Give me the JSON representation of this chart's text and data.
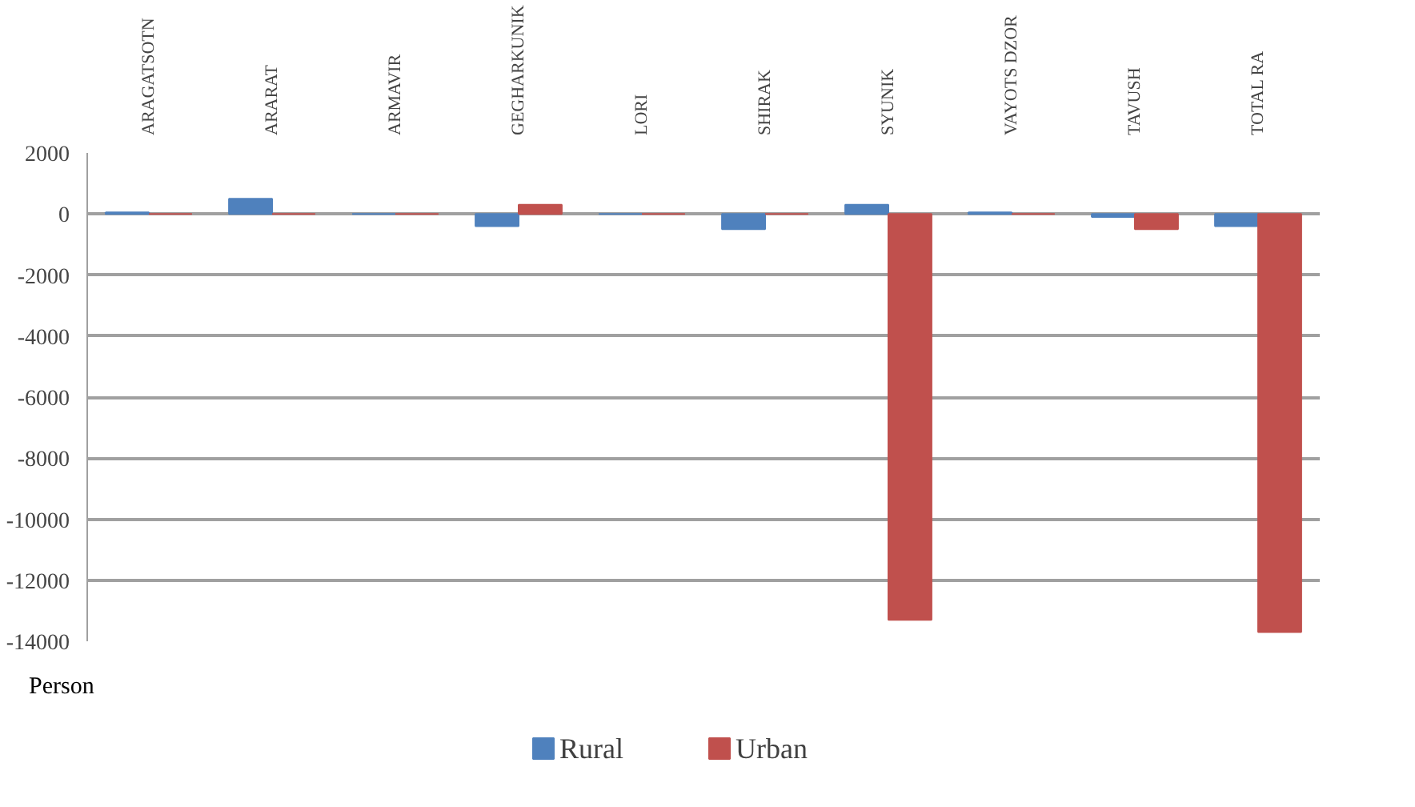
{
  "chart_data": {
    "type": "bar",
    "categories": [
      "ARAGATSOTN",
      "ARARAT",
      "ARMAVIR",
      "GEGHARKUNIK",
      "LORI",
      "SHIRAK",
      "SYUNIK",
      "VAYOTS DZOR",
      "TAVUSH",
      "TOTAL RA"
    ],
    "series": [
      {
        "name": "Rural",
        "color": "#4f81bd",
        "values": [
          50,
          500,
          0,
          -400,
          0,
          -500,
          300,
          50,
          -100,
          -400
        ]
      },
      {
        "name": "Urban",
        "color": "#c0504d",
        "values": [
          0,
          0,
          0,
          300,
          0,
          0,
          -13300,
          0,
          -500,
          -13700
        ]
      }
    ],
    "ylim": [
      -14000,
      2000
    ],
    "yticks": [
      -14000,
      -12000,
      -10000,
      -8000,
      -6000,
      -4000,
      -2000,
      0,
      2000
    ],
    "ylabel": "Person",
    "grid": "y",
    "legend": "bottom"
  }
}
